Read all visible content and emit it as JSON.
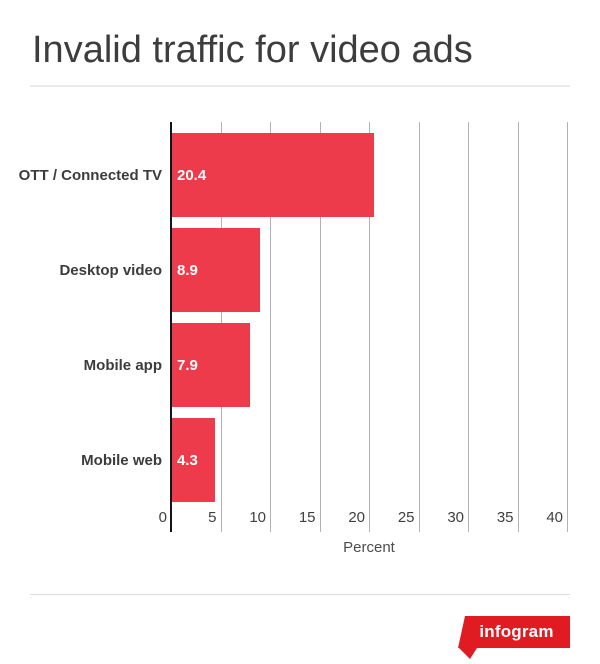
{
  "page": {
    "title": "Invalid traffic for video ads"
  },
  "chart_data": {
    "type": "bar",
    "orientation": "horizontal",
    "title": "Invalid traffic for video ads",
    "categories": [
      "OTT / Connected TV",
      "Desktop video",
      "Mobile app",
      "Mobile web"
    ],
    "values": [
      20.4,
      8.9,
      7.9,
      4.3
    ],
    "value_labels": [
      "20.4",
      "8.9",
      "7.9",
      "4.3"
    ],
    "xlabel": "Percent",
    "ylabel": "",
    "x_ticks": [
      0,
      5,
      10,
      15,
      20,
      25,
      30,
      35,
      40
    ],
    "xlim": [
      0,
      40
    ],
    "grid": true,
    "legend": false,
    "bar_color": "#ee3b4b",
    "axis_color": "#141414",
    "grid_color": "#b3b3b3"
  },
  "footer": {
    "logo_text": "infogram",
    "logo_color": "#e01b22"
  }
}
